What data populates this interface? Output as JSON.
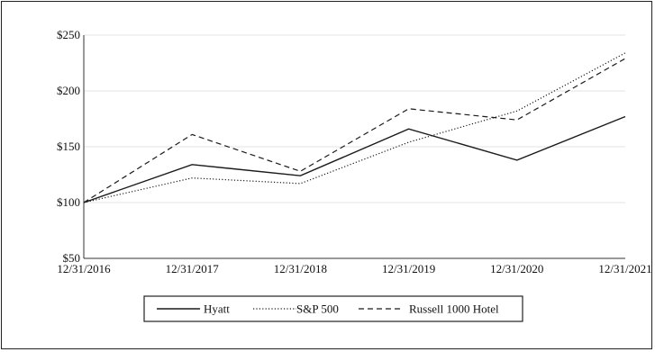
{
  "chart_data": {
    "type": "line",
    "x": [
      "12/31/2016",
      "12/31/2017",
      "12/31/2018",
      "12/31/2019",
      "12/31/2020",
      "12/31/2021"
    ],
    "series": [
      {
        "name": "Hyatt",
        "values": [
          100,
          134,
          124,
          166,
          138,
          177
        ],
        "style": "solid"
      },
      {
        "name": "S&P 500",
        "values": [
          100,
          122,
          117,
          154,
          182,
          234
        ],
        "style": "dotted"
      },
      {
        "name": "Russell 1000 Hotel",
        "values": [
          100,
          161,
          128,
          184,
          174,
          229
        ],
        "style": "dashed"
      }
    ],
    "yticks": [
      "$50",
      "$100",
      "$150",
      "$200",
      "$250"
    ],
    "ylim": [
      50,
      250
    ],
    "grid": true,
    "legend_position": "bottom-center",
    "title": "",
    "xlabel": "",
    "ylabel": ""
  }
}
